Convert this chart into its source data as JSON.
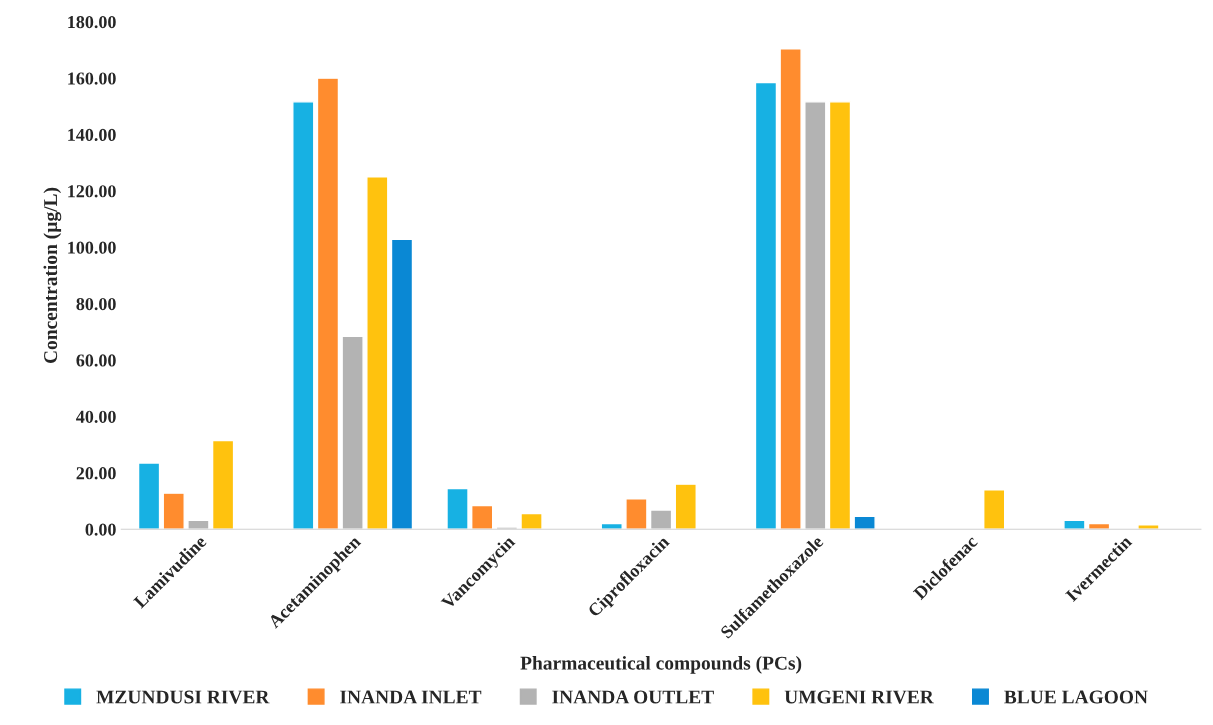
{
  "chart_data": {
    "type": "bar",
    "xlabel": "Pharmaceutical compounds (PCs)",
    "ylabel": "Concentration (µg/L)",
    "categories": [
      "Lamivudine",
      "Acetaminophen",
      "Vancomycin",
      "Ciprofloxacin",
      "Sulfamethoxazole",
      "Diclofenac",
      "Ivermectin"
    ],
    "series": [
      {
        "name": "MZUNDUSI RIVER",
        "color": "#17b1e3",
        "values": [
          23.5,
          151.6,
          14.4,
          2.0,
          158.4,
          null,
          3.2
        ]
      },
      {
        "name": "INANDA INLET",
        "color": "#ff8c2e",
        "values": [
          12.8,
          160.0,
          8.4,
          10.8,
          170.4,
          null,
          2.0
        ]
      },
      {
        "name": "INANDA OUTLET",
        "color": "#b3b3b3",
        "values": [
          3.2,
          68.4,
          0.8,
          6.8,
          151.6,
          null,
          null
        ]
      },
      {
        "name": "UMGENI RIVER",
        "color": "#ffc20e",
        "values": [
          31.5,
          125.0,
          5.6,
          16.0,
          151.6,
          14.0,
          1.6
        ]
      },
      {
        "name": "BLUE LAGOON",
        "color": "#0a88d4",
        "values": [
          null,
          102.8,
          null,
          null,
          4.6,
          null,
          null
        ]
      }
    ],
    "ylim": [
      0,
      180
    ],
    "yticks": [
      {
        "value": 0,
        "label": "0.00"
      },
      {
        "value": 20,
        "label": "20.00"
      },
      {
        "value": 40,
        "label": "40.00"
      },
      {
        "value": 60,
        "label": "60.00"
      },
      {
        "value": 80,
        "label": "80.00"
      },
      {
        "value": 100,
        "label": "100.00"
      },
      {
        "value": 120,
        "label": "120.00"
      },
      {
        "value": 140,
        "label": "140.00"
      },
      {
        "value": 160,
        "label": "160.00"
      },
      {
        "value": 180,
        "label": "180.00"
      }
    ],
    "grid": false,
    "legend": "bottom"
  }
}
